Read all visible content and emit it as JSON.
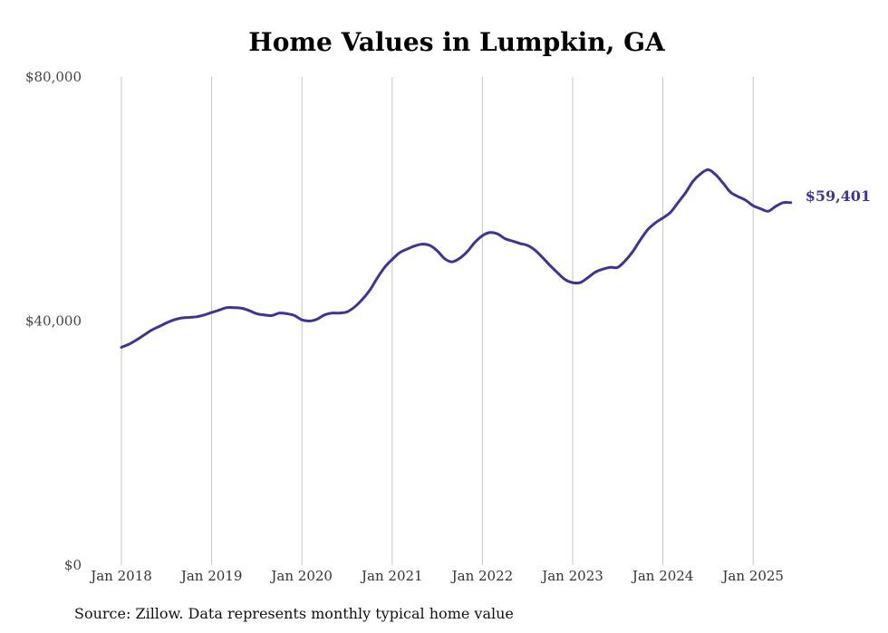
{
  "chart_data": {
    "type": "line",
    "title": "Home Values in Lumpkin, GA",
    "xlabel": "",
    "ylabel": "",
    "ylim": [
      0,
      80000
    ],
    "y_ticks": [
      0,
      40000,
      80000
    ],
    "y_tick_labels": [
      "$0",
      "$40,000",
      "$80,000"
    ],
    "x_tick_labels": [
      "Jan 2018",
      "Jan 2019",
      "Jan 2020",
      "Jan 2021",
      "Jan 2022",
      "Jan 2023",
      "Jan 2024",
      "Jan 2025"
    ],
    "grid": "vertical",
    "line_color": "#3d3593",
    "end_label": "$59,401",
    "series": [
      {
        "x": [
          "Jan 2018",
          "Feb 2018",
          "Mar 2018",
          "Apr 2018",
          "May 2018",
          "Jun 2018",
          "Jul 2018",
          "Aug 2018",
          "Sep 2018",
          "Oct 2018",
          "Nov 2018",
          "Dec 2018",
          "Jan 2019",
          "Feb 2019",
          "Mar 2019",
          "Apr 2019",
          "May 2019",
          "Jun 2019",
          "Jul 2019",
          "Aug 2019",
          "Sep 2019",
          "Oct 2019",
          "Nov 2019",
          "Dec 2019",
          "Jan 2020",
          "Feb 2020",
          "Mar 2020",
          "Apr 2020",
          "May 2020",
          "Jun 2020",
          "Jul 2020",
          "Aug 2020",
          "Sep 2020",
          "Oct 2020",
          "Nov 2020",
          "Dec 2020",
          "Jan 2021",
          "Feb 2021",
          "Mar 2021",
          "Apr 2021",
          "May 2021",
          "Jun 2021",
          "Jul 2021",
          "Aug 2021",
          "Sep 2021",
          "Oct 2021",
          "Nov 2021",
          "Dec 2021",
          "Jan 2022",
          "Feb 2022",
          "Mar 2022",
          "Apr 2022",
          "May 2022",
          "Jun 2022",
          "Jul 2022",
          "Aug 2022",
          "Sep 2022",
          "Oct 2022",
          "Nov 2022",
          "Dec 2022",
          "Jan 2023",
          "Feb 2023",
          "Mar 2023",
          "Apr 2023",
          "May 2023",
          "Jun 2023",
          "Jul 2023",
          "Aug 2023",
          "Sep 2023",
          "Oct 2023",
          "Nov 2023",
          "Dec 2023",
          "Jan 2024",
          "Feb 2024",
          "Mar 2024",
          "Apr 2024",
          "May 2024",
          "Jun 2024",
          "Jul 2024",
          "Aug 2024",
          "Sep 2024",
          "Oct 2024",
          "Nov 2024",
          "Dec 2024",
          "Jan 2025",
          "Feb 2025",
          "Mar 2025",
          "Apr 2025",
          "May 2025",
          "Jun 2025"
        ],
        "values": [
          35700,
          36200,
          36900,
          37700,
          38500,
          39100,
          39700,
          40200,
          40500,
          40600,
          40700,
          41000,
          41400,
          41800,
          42200,
          42200,
          42100,
          41700,
          41200,
          41000,
          40900,
          41300,
          41200,
          40900,
          40200,
          40000,
          40300,
          41000,
          41300,
          41300,
          41500,
          42300,
          43500,
          45000,
          47000,
          48800,
          50100,
          51200,
          51800,
          52300,
          52600,
          52400,
          51500,
          50200,
          49700,
          50300,
          51400,
          52900,
          54000,
          54500,
          54300,
          53500,
          53100,
          52700,
          52400,
          51600,
          50400,
          49100,
          47900,
          46800,
          46300,
          46300,
          47100,
          48000,
          48500,
          48800,
          48800,
          49900,
          51400,
          53300,
          55000,
          56100,
          56900,
          57800,
          59400,
          61000,
          62900,
          64100,
          64800,
          64000,
          62600,
          61100,
          60400,
          59800,
          58900,
          58400,
          58000,
          58800,
          59401,
          59401
        ]
      }
    ]
  },
  "footer": {
    "source": "Source: Zillow. Data represents monthly typical home value"
  }
}
